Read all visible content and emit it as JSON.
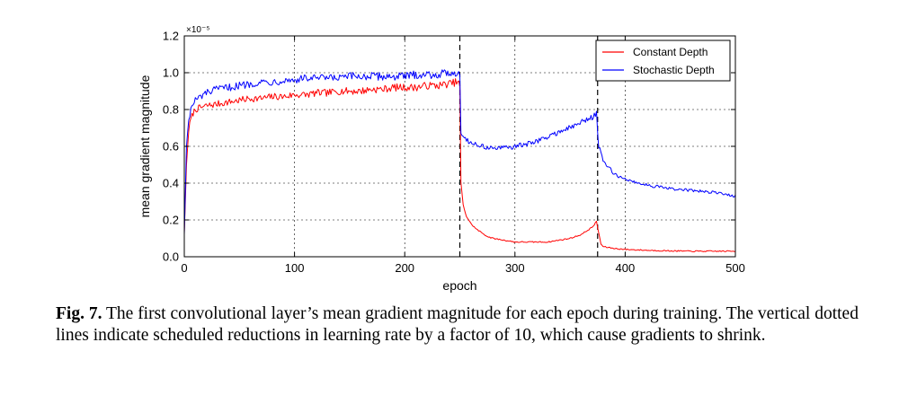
{
  "chart_data": {
    "type": "line",
    "xlabel": "epoch",
    "ylabel": "mean gradient magnitude",
    "xlim": [
      0,
      500
    ],
    "ylim": [
      0.0,
      1.2
    ],
    "y_scale_exponent": "×10⁻⁵",
    "xticks": [
      "0",
      "100",
      "200",
      "300",
      "400",
      "500"
    ],
    "yticks": [
      "0.0",
      "0.2",
      "0.4",
      "0.6",
      "0.8",
      "1.0",
      "1.2"
    ],
    "grid": true,
    "legend_position": "top-right",
    "vlines": [
      250,
      375
    ],
    "series": [
      {
        "name": "Constant Depth",
        "color": "#ff0000",
        "points": [
          [
            0,
            0.13
          ],
          [
            2,
            0.5
          ],
          [
            4,
            0.69
          ],
          [
            6,
            0.75
          ],
          [
            8,
            0.78
          ],
          [
            10,
            0.8
          ],
          [
            15,
            0.81
          ],
          [
            20,
            0.82
          ],
          [
            30,
            0.83
          ],
          [
            40,
            0.84
          ],
          [
            50,
            0.85
          ],
          [
            60,
            0.86
          ],
          [
            70,
            0.86
          ],
          [
            80,
            0.87
          ],
          [
            90,
            0.87
          ],
          [
            100,
            0.88
          ],
          [
            110,
            0.88
          ],
          [
            120,
            0.89
          ],
          [
            130,
            0.89
          ],
          [
            140,
            0.9
          ],
          [
            150,
            0.9
          ],
          [
            160,
            0.9
          ],
          [
            170,
            0.91
          ],
          [
            180,
            0.91
          ],
          [
            190,
            0.92
          ],
          [
            200,
            0.92
          ],
          [
            210,
            0.92
          ],
          [
            220,
            0.93
          ],
          [
            230,
            0.93
          ],
          [
            240,
            0.94
          ],
          [
            248,
            0.95
          ],
          [
            250,
            0.93
          ],
          [
            251,
            0.4
          ],
          [
            253,
            0.28
          ],
          [
            256,
            0.22
          ],
          [
            260,
            0.18
          ],
          [
            265,
            0.15
          ],
          [
            270,
            0.13
          ],
          [
            275,
            0.11
          ],
          [
            280,
            0.1
          ],
          [
            290,
            0.09
          ],
          [
            300,
            0.08
          ],
          [
            310,
            0.08
          ],
          [
            320,
            0.08
          ],
          [
            330,
            0.08
          ],
          [
            340,
            0.09
          ],
          [
            350,
            0.1
          ],
          [
            360,
            0.12
          ],
          [
            370,
            0.16
          ],
          [
            374,
            0.19
          ],
          [
            376,
            0.13
          ],
          [
            378,
            0.07
          ],
          [
            380,
            0.055
          ],
          [
            390,
            0.045
          ],
          [
            400,
            0.04
          ],
          [
            420,
            0.035
          ],
          [
            440,
            0.032
          ],
          [
            460,
            0.03
          ],
          [
            480,
            0.03
          ],
          [
            500,
            0.03
          ]
        ]
      },
      {
        "name": "Stochastic Depth",
        "color": "#0000ff",
        "points": [
          [
            0,
            0.12
          ],
          [
            2,
            0.6
          ],
          [
            4,
            0.75
          ],
          [
            6,
            0.8
          ],
          [
            8,
            0.83
          ],
          [
            10,
            0.85
          ],
          [
            15,
            0.87
          ],
          [
            20,
            0.89
          ],
          [
            30,
            0.91
          ],
          [
            40,
            0.92
          ],
          [
            50,
            0.93
          ],
          [
            60,
            0.94
          ],
          [
            70,
            0.95
          ],
          [
            80,
            0.95
          ],
          [
            90,
            0.96
          ],
          [
            100,
            0.96
          ],
          [
            110,
            0.97
          ],
          [
            120,
            0.97
          ],
          [
            130,
            0.97
          ],
          [
            140,
            0.97
          ],
          [
            150,
            0.98
          ],
          [
            160,
            0.98
          ],
          [
            170,
            0.98
          ],
          [
            180,
            0.98
          ],
          [
            190,
            0.98
          ],
          [
            200,
            0.98
          ],
          [
            210,
            0.99
          ],
          [
            220,
            0.99
          ],
          [
            230,
            0.99
          ],
          [
            240,
            1.0
          ],
          [
            248,
            1.0
          ],
          [
            250,
            0.99
          ],
          [
            251,
            0.68
          ],
          [
            255,
            0.64
          ],
          [
            260,
            0.62
          ],
          [
            270,
            0.6
          ],
          [
            280,
            0.59
          ],
          [
            290,
            0.59
          ],
          [
            300,
            0.6
          ],
          [
            310,
            0.61
          ],
          [
            320,
            0.63
          ],
          [
            330,
            0.65
          ],
          [
            340,
            0.68
          ],
          [
            350,
            0.7
          ],
          [
            360,
            0.73
          ],
          [
            370,
            0.76
          ],
          [
            374,
            0.78
          ],
          [
            376,
            0.6
          ],
          [
            380,
            0.52
          ],
          [
            390,
            0.45
          ],
          [
            400,
            0.42
          ],
          [
            420,
            0.39
          ],
          [
            440,
            0.37
          ],
          [
            460,
            0.36
          ],
          [
            480,
            0.35
          ],
          [
            500,
            0.33
          ]
        ]
      }
    ]
  },
  "caption": {
    "label": "Fig. 7.",
    "text": "The first convolutional layer’s mean gradient magnitude for each epoch during training. The vertical dotted lines indicate scheduled reductions in learning rate by a factor of 10, which cause gradients to shrink."
  }
}
